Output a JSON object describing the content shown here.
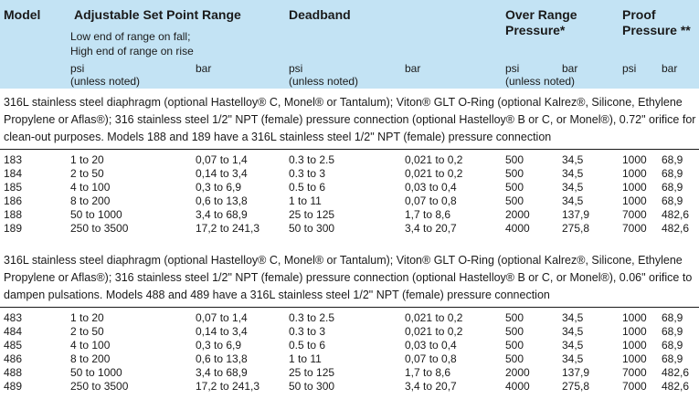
{
  "header": {
    "model": "Model",
    "set_point": "Adjustable Set Point Range",
    "set_point_note1": "Low end of range on fall;",
    "set_point_note2": "High end of range on rise",
    "deadband": "Deadband",
    "over_range_1": "Over Range",
    "over_range_2": "Pressure*",
    "proof_1": "Proof",
    "proof_2": "Pressure **",
    "psi": "psi",
    "bar": "bar",
    "unless_noted": "(unless noted)"
  },
  "section1": {
    "description": "316L stainless steel diaphragm (optional Hastelloy® C, Monel® or Tantalum); Viton® GLT O-Ring (optional Kalrez®, Silicone, Ethylene Propylene or Aflas®); 316 stainless steel 1/2\" NPT (female) pressure connection (optional Hastelloy® B or C, or Monel®), 0.72\" orifice for clean-out purposes. Models 188 and 189 have a 316L stainless steel 1/2\" NPT (female) pressure connection",
    "rows": [
      {
        "model": "183",
        "sp_psi": "1 to 20",
        "sp_bar": "0,07 to 1,4",
        "db_psi": "0.3 to 2.5",
        "db_bar": "0,021 to 0,2",
        "or_psi": "500",
        "or_bar": "34,5",
        "pr_psi": "1000",
        "pr_bar": "68,9"
      },
      {
        "model": "184",
        "sp_psi": "2 to 50",
        "sp_bar": "0,14 to 3,4",
        "db_psi": "0.3 to 3",
        "db_bar": "0,021 to 0,2",
        "or_psi": "500",
        "or_bar": "34,5",
        "pr_psi": "1000",
        "pr_bar": "68,9"
      },
      {
        "model": "185",
        "sp_psi": "4 to 100",
        "sp_bar": "0,3 to 6,9",
        "db_psi": "0.5 to 6",
        "db_bar": "0,03 to 0,4",
        "or_psi": "500",
        "or_bar": "34,5",
        "pr_psi": "1000",
        "pr_bar": "68,9"
      },
      {
        "model": "186",
        "sp_psi": "8 to 200",
        "sp_bar": "0,6 to 13,8",
        "db_psi": "1 to 11",
        "db_bar": "0,07 to 0,8",
        "or_psi": "500",
        "or_bar": "34,5",
        "pr_psi": "1000",
        "pr_bar": "68,9"
      },
      {
        "model": "188",
        "sp_psi": "50 to 1000",
        "sp_bar": "3,4 to 68,9",
        "db_psi": "25 to 125",
        "db_bar": "1,7 to 8,6",
        "or_psi": "2000",
        "or_bar": "137,9",
        "pr_psi": "7000",
        "pr_bar": "482,6"
      },
      {
        "model": "189",
        "sp_psi": "250 to 3500",
        "sp_bar": "17,2 to 241,3",
        "db_psi": "50 to 300",
        "db_bar": "3,4 to 20,7",
        "or_psi": "4000",
        "or_bar": "275,8",
        "pr_psi": "7000",
        "pr_bar": "482,6"
      }
    ]
  },
  "section2": {
    "description": "316L stainless steel diaphragm (optional Hastelloy® C, Monel® or Tantalum); Viton® GLT O-Ring (optional Kalrez®, Silicone, Ethylene Propylene or Aflas®); 316 stainless steel 1/2\" NPT (female) pressure connection (optional Hastelloy® B or C, or Monel®), 0.06\" orifice to dampen pulsations. Models 488 and 489 have a 316L stainless steel 1/2\" NPT (female) pressure connection",
    "rows": [
      {
        "model": "483",
        "sp_psi": "1 to 20",
        "sp_bar": "0,07 to 1,4",
        "db_psi": "0.3 to 2.5",
        "db_bar": "0,021 to 0,2",
        "or_psi": "500",
        "or_bar": "34,5",
        "pr_psi": "1000",
        "pr_bar": "68,9"
      },
      {
        "model": "484",
        "sp_psi": "2 to 50",
        "sp_bar": "0,14 to 3,4",
        "db_psi": "0.3 to 3",
        "db_bar": "0,021 to 0,2",
        "or_psi": "500",
        "or_bar": "34,5",
        "pr_psi": "1000",
        "pr_bar": "68,9"
      },
      {
        "model": "485",
        "sp_psi": "4 to 100",
        "sp_bar": "0,3 to 6,9",
        "db_psi": "0.5 to 6",
        "db_bar": "0,03 to 0,4",
        "or_psi": "500",
        "or_bar": "34,5",
        "pr_psi": "1000",
        "pr_bar": "68,9"
      },
      {
        "model": "486",
        "sp_psi": "8 to 200",
        "sp_bar": "0,6 to 13,8",
        "db_psi": "1 to 11",
        "db_bar": "0,07 to 0,8",
        "or_psi": "500",
        "or_bar": "34,5",
        "pr_psi": "1000",
        "pr_bar": "68,9"
      },
      {
        "model": "488",
        "sp_psi": "50 to 1000",
        "sp_bar": "3,4 to 68,9",
        "db_psi": "25 to 125",
        "db_bar": "1,7 to 8,6",
        "or_psi": "2000",
        "or_bar": "137,9",
        "pr_psi": "7000",
        "pr_bar": "482,6"
      },
      {
        "model": "489",
        "sp_psi": "250 to 3500",
        "sp_bar": "17,2 to 241,3",
        "db_psi": "50 to 300",
        "db_bar": "3,4 to 20,7",
        "or_psi": "4000",
        "or_bar": "275,8",
        "pr_psi": "7000",
        "pr_bar": "482,6"
      }
    ]
  },
  "colors": {
    "header_bg": "#c3e3f4",
    "text": "#1a1a1a",
    "rule": "#1a1a1a"
  }
}
